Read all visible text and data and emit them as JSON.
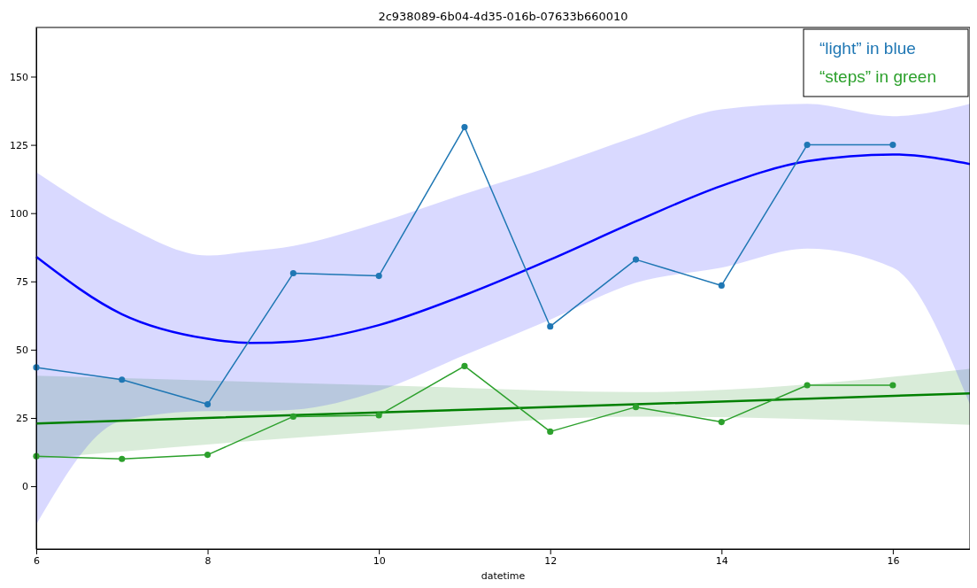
{
  "chart_data": {
    "type": "line",
    "title": "2c938089-6b04-4d35-016b-07633b660010",
    "xlabel": "datetime",
    "xlim": [
      6,
      16.9
    ],
    "xticks": [
      6,
      8,
      10,
      12,
      14,
      16
    ],
    "ylim": [
      -23,
      168
    ],
    "yticks": [
      0,
      25,
      50,
      75,
      100,
      125,
      150
    ],
    "grid": false,
    "marker": "circle",
    "line_style": "solid",
    "annotations": [
      "“light” in blue",
      "“steps” in green"
    ],
    "series": [
      {
        "color": "#0000ff",
        "marker": "none",
        "x": [
          6,
          7,
          8,
          8.5,
          9,
          10,
          11,
          12,
          13,
          14,
          15,
          16,
          16.9
        ],
        "values": [
          84,
          63,
          54,
          52.5,
          53,
          59,
          70,
          83,
          97,
          110,
          119,
          121.5,
          118
        ],
        "lower": [
          -14,
          24,
          27.5,
          27.5,
          28,
          35,
          48,
          61,
          74.5,
          80,
          87,
          80,
          30
        ],
        "upper": [
          115,
          96,
          84.5,
          86,
          88,
          96.5,
          107,
          117,
          128,
          138,
          140,
          135.5,
          140
        ]
      },
      {
        "color": "#008000",
        "marker": "none",
        "x": [
          6,
          10,
          13,
          16.9
        ],
        "values": [
          23,
          27,
          30,
          34
        ],
        "lower": [
          10,
          20,
          25.5,
          22.5
        ],
        "upper": [
          40.5,
          37,
          34.5,
          43
        ]
      },
      {
        "color": "#1f77b4",
        "x": [
          6,
          7,
          8,
          9,
          10,
          11,
          12,
          13,
          14,
          15,
          16
        ],
        "values": [
          43.5,
          39,
          30,
          78,
          77,
          131.5,
          58.5,
          83,
          73.5,
          125,
          125
        ]
      },
      {
        "color": "#2ca02c",
        "x": [
          6,
          7,
          8,
          9,
          10,
          11,
          12,
          13,
          14,
          15,
          16
        ],
        "values": [
          11,
          10,
          11.5,
          25.5,
          26,
          44,
          20,
          29,
          23.5,
          37,
          37
        ]
      }
    ]
  }
}
